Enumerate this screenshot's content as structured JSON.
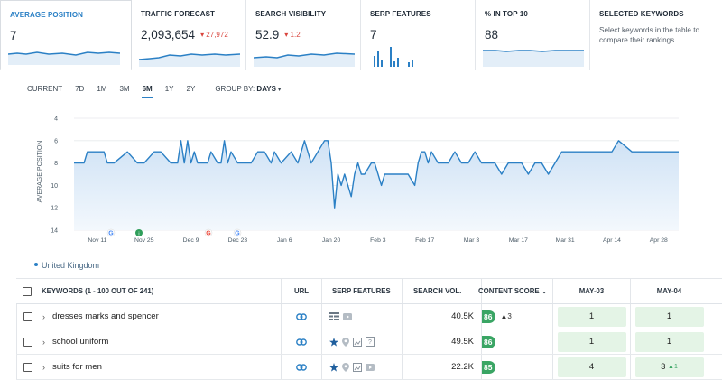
{
  "kpis": [
    {
      "title": "AVERAGE POSITION",
      "value": "7",
      "delta": ""
    },
    {
      "title": "TRAFFIC FORECAST",
      "value": "2,093,654",
      "delta": "▾ 27,972"
    },
    {
      "title": "SEARCH VISIBILITY",
      "value": "52.9",
      "delta": "▾ 1.2"
    },
    {
      "title": "SERP FEATURES",
      "value": "7",
      "delta": ""
    },
    {
      "title": "% IN TOP 10",
      "value": "88",
      "delta": ""
    }
  ],
  "selected_keywords": {
    "title": "SELECTED KEYWORDS",
    "description": "Select keywords in the table to compare their rankings."
  },
  "range": {
    "options": [
      "CURRENT",
      "7D",
      "1M",
      "3M",
      "6M",
      "1Y",
      "2Y"
    ],
    "active": "6M",
    "group_by_label": "GROUP BY:",
    "group_by_value": "DAYS"
  },
  "chart_data": {
    "type": "line",
    "ylabel": "AVERAGE POSITION",
    "y_inverted": true,
    "ylim": [
      4,
      14
    ],
    "yticks": [
      4,
      6,
      8,
      10,
      12,
      14
    ],
    "xticks": [
      "Nov 11",
      "Nov 25",
      "Dec 9",
      "Dec 23",
      "Jan 6",
      "Jan 20",
      "Feb 3",
      "Feb 17",
      "Mar 3",
      "Mar 17",
      "Mar 31",
      "Apr 14",
      "Apr 28"
    ],
    "x": [
      "Nov 4",
      "Nov 7",
      "Nov 8",
      "Nov 13",
      "Nov 14",
      "Nov 16",
      "Nov 20",
      "Nov 23",
      "Nov 25",
      "Nov 28",
      "Nov 30",
      "Dec 3",
      "Dec 5",
      "Dec 6",
      "Dec 7",
      "Dec 8",
      "Dec 9",
      "Dec 10",
      "Dec 11",
      "Dec 13",
      "Dec 14",
      "Dec 15",
      "Dec 17",
      "Dec 18",
      "Dec 19",
      "Dec 20",
      "Dec 21",
      "Dec 23",
      "Dec 25",
      "Dec 27",
      "Dec 29",
      "Dec 31",
      "Jan 2",
      "Jan 3",
      "Jan 5",
      "Jan 8",
      "Jan 10",
      "Jan 12",
      "Jan 14",
      "Jan 16",
      "Jan 18",
      "Jan 19",
      "Jan 20",
      "Jan 21",
      "Jan 22",
      "Jan 23",
      "Jan 24",
      "Jan 26",
      "Jan 27",
      "Jan 28",
      "Jan 29",
      "Jan 30",
      "Feb 1",
      "Feb 2",
      "Feb 3",
      "Feb 4",
      "Feb 5",
      "Feb 6",
      "Feb 8",
      "Feb 10",
      "Feb 12",
      "Feb 14",
      "Feb 15",
      "Feb 16",
      "Feb 17",
      "Feb 18",
      "Feb 19",
      "Feb 21",
      "Feb 24",
      "Feb 26",
      "Feb 28",
      "Mar 2",
      "Mar 4",
      "Mar 6",
      "Mar 8",
      "Mar 10",
      "Mar 12",
      "Mar 14",
      "Mar 16",
      "Mar 18",
      "Mar 20",
      "Mar 22",
      "Mar 24",
      "Mar 26",
      "Mar 28",
      "Mar 30",
      "Apr 1",
      "Apr 5",
      "Apr 10",
      "Apr 14",
      "Apr 16",
      "Apr 20",
      "Apr 25",
      "May 1",
      "May 4"
    ],
    "series": [
      {
        "values": [
          8,
          8,
          7,
          7,
          8,
          8,
          7,
          8,
          8,
          7,
          7,
          8,
          8,
          6,
          8,
          6,
          8,
          7,
          8,
          8,
          8,
          7,
          8,
          8,
          6,
          8,
          7,
          8,
          8,
          8,
          7,
          7,
          8,
          7,
          8,
          7,
          8,
          6,
          8,
          7,
          6,
          6,
          8,
          12,
          9,
          10,
          9,
          11,
          9,
          8,
          9,
          9,
          8,
          8,
          9,
          10,
          9,
          9,
          9,
          9,
          9,
          10,
          8,
          7,
          7,
          8,
          7,
          8,
          8,
          7,
          8,
          8,
          7,
          8,
          8,
          8,
          9,
          8,
          8,
          8,
          9,
          8,
          8,
          9,
          8,
          7,
          7,
          7,
          7,
          7,
          6,
          7,
          7,
          7,
          7
        ]
      }
    ]
  },
  "legend": {
    "label": "United Kingdom"
  },
  "table": {
    "headers": {
      "keywords": "KEYWORDS (1 - 100 OUT OF 241)",
      "url": "URL",
      "serp": "SERP FEATURES",
      "volume": "SEARCH VOL.",
      "content_score": "CONTENT SCORE",
      "may03": "MAY-03",
      "may04": "MAY-04"
    },
    "rows": [
      {
        "keyword": "dresses marks and spencer",
        "volume": "40.5K",
        "score": "86",
        "score_delta": "▲3",
        "may03": "1",
        "may04": "1",
        "may04_delta": "",
        "serp": [
          "table-icon",
          "video-icon"
        ]
      },
      {
        "keyword": "school uniform",
        "volume": "49.5K",
        "score": "86",
        "score_delta": "",
        "may03": "1",
        "may04": "1",
        "may04_delta": "",
        "serp": [
          "star-icon",
          "pin-icon",
          "image-icon",
          "review-icon"
        ]
      },
      {
        "keyword": "suits for men",
        "volume": "22.2K",
        "score": "85",
        "score_delta": "",
        "may03": "4",
        "may04": "3",
        "may04_delta": "▲1",
        "serp": [
          "star-icon",
          "pin-icon",
          "image-icon",
          "video-icon"
        ]
      }
    ]
  },
  "colors": {
    "accent": "#2b80c5",
    "negative": "#d9453d",
    "positive": "#3aa564",
    "cell_bg": "#e4f4e6"
  }
}
